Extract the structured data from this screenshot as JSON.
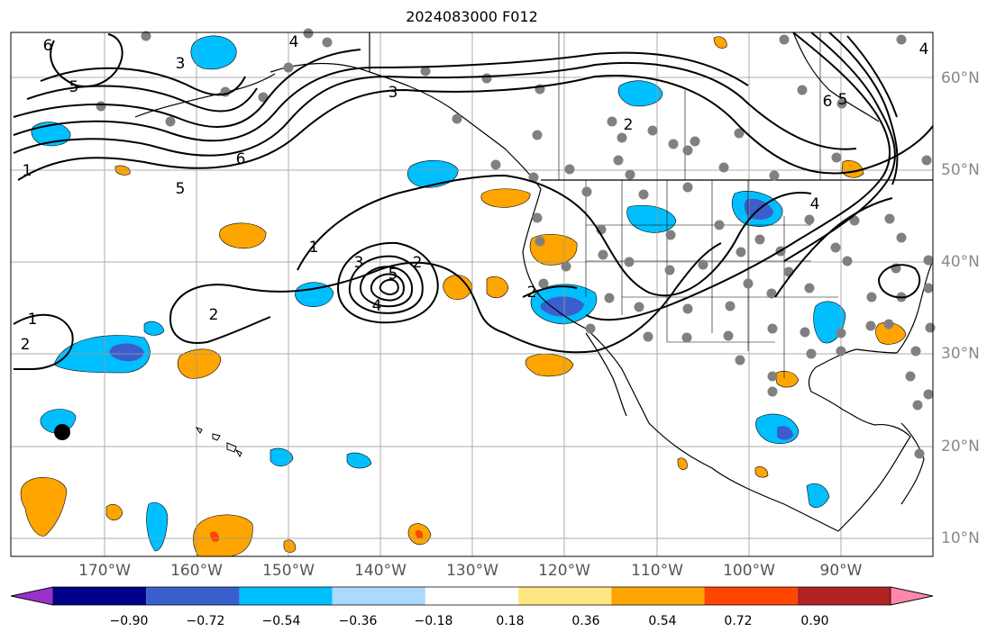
{
  "title": "2024083000 F012",
  "axes": {
    "lon_labels": [
      "170°W",
      "160°W",
      "150°W",
      "140°W",
      "130°W",
      "120°W",
      "110°W",
      "100°W",
      "90°W"
    ],
    "lat_labels": [
      "60°N",
      "50°N",
      "40°N",
      "30°N",
      "20°N",
      "10°N"
    ]
  },
  "colorbar": {
    "ticks": [
      "−0.90",
      "−0.72",
      "−0.54",
      "−0.36",
      "−0.18",
      "0.18",
      "0.36",
      "0.54",
      "0.72",
      "0.90"
    ],
    "colors": [
      "#9932cc",
      "#00008b",
      "#3a5fcd",
      "#00bfff",
      "#add8ff",
      "#ffffff",
      "#ffe680",
      "#ffa500",
      "#ff4500",
      "#b22222",
      "#ff88aa"
    ]
  },
  "contours": {
    "labels": [
      "6",
      "5",
      "4",
      "3",
      "2",
      "1",
      "1",
      "2",
      "3",
      "5",
      "4",
      "2",
      "6",
      "5",
      "2",
      "4",
      "1",
      "2",
      "6",
      "5",
      "4",
      "3"
    ]
  },
  "shading_colors": {
    "negative_light": "#00bfff",
    "negative_dark": "#3a5fcd",
    "positive_light": "#ffa500",
    "positive_dark": "#ff4500"
  }
}
